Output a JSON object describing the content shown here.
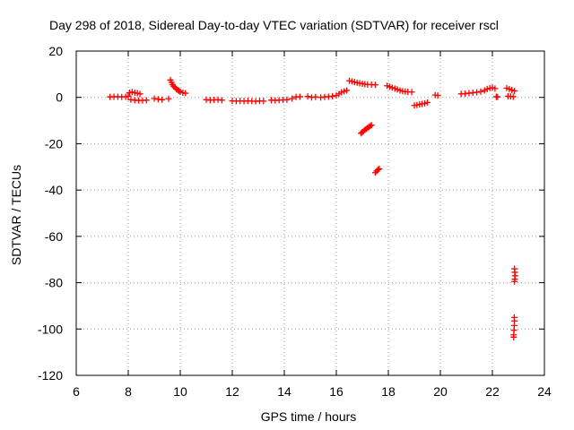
{
  "chart_data": {
    "type": "scatter",
    "title": "Day 298 of 2018, Sidereal Day-to-day VTEC variation (SDTVAR) for receiver rscl",
    "xlabel": "GPS time / hours",
    "ylabel": "SDTVAR / TECUs",
    "xlim": [
      6,
      24
    ],
    "ylim": [
      -120,
      20
    ],
    "xticks": [
      6,
      8,
      10,
      12,
      14,
      16,
      18,
      20,
      22,
      24
    ],
    "yticks": [
      20,
      0,
      -20,
      -40,
      -60,
      -80,
      -100,
      -120
    ],
    "grid": true,
    "marker": "+",
    "color": "#ff0000",
    "series": [
      {
        "points": [
          [
            7.3,
            0.2
          ],
          [
            7.45,
            0.3
          ],
          [
            7.6,
            0.3
          ],
          [
            7.75,
            0.2
          ],
          [
            7.9,
            0.3
          ],
          [
            8.0,
            0.5
          ],
          [
            8.05,
            2.0
          ],
          [
            8.15,
            2.3
          ],
          [
            8.25,
            2.0
          ],
          [
            8.35,
            1.8
          ],
          [
            8.45,
            1.5
          ],
          [
            8.1,
            -1.0
          ],
          [
            8.25,
            -1.2
          ],
          [
            8.4,
            -1.3
          ],
          [
            8.55,
            -1.3
          ],
          [
            8.7,
            -1.2
          ],
          [
            9.0,
            -0.5
          ],
          [
            9.15,
            -0.8
          ],
          [
            9.3,
            -1.0
          ],
          [
            9.55,
            -0.6
          ],
          [
            9.62,
            7.5
          ],
          [
            9.66,
            6.5
          ],
          [
            9.7,
            5.5
          ],
          [
            9.75,
            4.8
          ],
          [
            9.8,
            4.2
          ],
          [
            9.85,
            3.6
          ],
          [
            9.9,
            3.2
          ],
          [
            9.95,
            2.8
          ],
          [
            10.0,
            2.4
          ],
          [
            10.1,
            2.0
          ],
          [
            10.2,
            1.8
          ],
          [
            11.0,
            -1.0
          ],
          [
            11.15,
            -1.2
          ],
          [
            11.3,
            -1.1
          ],
          [
            11.45,
            -1.0
          ],
          [
            11.6,
            -1.2
          ],
          [
            12.0,
            -1.5
          ],
          [
            12.15,
            -1.6
          ],
          [
            12.3,
            -1.5
          ],
          [
            12.45,
            -1.6
          ],
          [
            12.6,
            -1.5
          ],
          [
            12.75,
            -1.6
          ],
          [
            12.9,
            -1.7
          ],
          [
            13.05,
            -1.5
          ],
          [
            13.2,
            -1.6
          ],
          [
            13.5,
            -1.2
          ],
          [
            13.65,
            -1.3
          ],
          [
            13.8,
            -1.2
          ],
          [
            13.95,
            -1.1
          ],
          [
            14.1,
            -1.0
          ],
          [
            14.3,
            -0.5
          ],
          [
            14.45,
            0.2
          ],
          [
            14.6,
            0.3
          ],
          [
            14.9,
            0.4
          ],
          [
            15.05,
            0.0
          ],
          [
            15.2,
            0.2
          ],
          [
            15.4,
            0.0
          ],
          [
            15.55,
            0.2
          ],
          [
            15.7,
            0.3
          ],
          [
            15.85,
            0.5
          ],
          [
            16.0,
            0.8
          ],
          [
            16.1,
            1.5
          ],
          [
            16.2,
            2.2
          ],
          [
            16.3,
            2.6
          ],
          [
            16.4,
            3.0
          ],
          [
            16.5,
            7.2
          ],
          [
            16.6,
            6.9
          ],
          [
            16.7,
            6.6
          ],
          [
            16.8,
            6.3
          ],
          [
            16.9,
            6.1
          ],
          [
            17.0,
            5.9
          ],
          [
            17.1,
            5.7
          ],
          [
            17.2,
            5.6
          ],
          [
            17.35,
            5.5
          ],
          [
            17.5,
            5.4
          ],
          [
            16.95,
            -15.5
          ],
          [
            17.0,
            -15.0
          ],
          [
            17.05,
            -14.5
          ],
          [
            17.1,
            -14.0
          ],
          [
            17.15,
            -13.6
          ],
          [
            17.2,
            -13.2
          ],
          [
            17.25,
            -12.8
          ],
          [
            17.3,
            -12.4
          ],
          [
            17.35,
            -12.0
          ],
          [
            17.5,
            -32.5
          ],
          [
            17.55,
            -31.8
          ],
          [
            17.6,
            -31.2
          ],
          [
            17.65,
            -30.8
          ],
          [
            17.95,
            5.0
          ],
          [
            18.05,
            4.6
          ],
          [
            18.15,
            4.2
          ],
          [
            18.25,
            3.8
          ],
          [
            18.35,
            3.4
          ],
          [
            18.45,
            3.0
          ],
          [
            18.55,
            2.7
          ],
          [
            18.65,
            2.5
          ],
          [
            18.75,
            2.4
          ],
          [
            18.9,
            2.3
          ],
          [
            19.0,
            -3.5
          ],
          [
            19.1,
            -3.3
          ],
          [
            19.2,
            -3.0
          ],
          [
            19.3,
            -2.8
          ],
          [
            19.4,
            -2.6
          ],
          [
            19.5,
            -2.2
          ],
          [
            19.8,
            1.0
          ],
          [
            19.9,
            0.8
          ],
          [
            20.8,
            1.5
          ],
          [
            20.95,
            1.6
          ],
          [
            21.1,
            1.8
          ],
          [
            21.25,
            2.0
          ],
          [
            21.4,
            2.2
          ],
          [
            21.55,
            2.5
          ],
          [
            21.7,
            3.0
          ],
          [
            21.8,
            3.6
          ],
          [
            21.9,
            4.0
          ],
          [
            22.0,
            4.2
          ],
          [
            22.1,
            3.8
          ],
          [
            22.2,
            0.2
          ],
          [
            22.15,
            0.3
          ],
          [
            22.55,
            4.0
          ],
          [
            22.65,
            3.6
          ],
          [
            22.75,
            3.2
          ],
          [
            22.85,
            2.8
          ],
          [
            22.6,
            0.5
          ],
          [
            22.7,
            0.4
          ],
          [
            22.8,
            0.3
          ],
          [
            22.85,
            -74.0
          ],
          [
            22.86,
            -75.5
          ],
          [
            22.87,
            -77.0
          ],
          [
            22.86,
            -78.5
          ],
          [
            22.85,
            -79.5
          ],
          [
            22.84,
            -95.0
          ],
          [
            22.85,
            -96.5
          ],
          [
            22.84,
            -98.5
          ],
          [
            22.83,
            -100.5
          ],
          [
            22.82,
            -102.5
          ],
          [
            22.82,
            -103.5
          ]
        ]
      }
    ]
  }
}
